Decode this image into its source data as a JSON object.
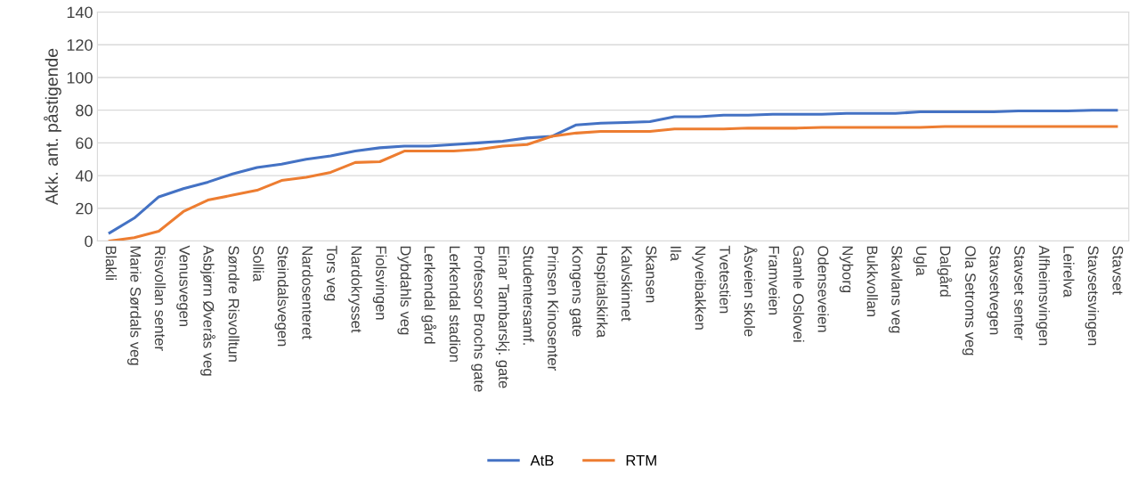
{
  "chart_data": {
    "type": "line",
    "ylabel": "Akk. ant. påstigende",
    "categories": [
      "Blakli",
      "Marie Sørdals veg",
      "Risvollan senter",
      "Venusvegen",
      "Asbjørn Øverås veg",
      "Søndre Risvolltun",
      "Sollia",
      "Steindalsvegen",
      "Nardosenteret",
      "Tors veg",
      "Nardokrysset",
      "Fiolsvingen",
      "Dybdahls veg",
      "Lerkendal gård",
      "Lerkendal stadion",
      "Professor Brochs gate",
      "Einar Tambarskj. gate",
      "Studentersamf.",
      "Prinsen Kinosenter",
      "Kongens gate",
      "Hospitalskirka",
      "Kalvskinnet",
      "Skansen",
      "Ila",
      "Nyveibakken",
      "Tvetestien",
      "Åsveien skole",
      "Framveien",
      "Gamle Oslovei",
      "Odenseveien",
      "Nyborg",
      "Bukkvollan",
      "Skavlans veg",
      "Ugla",
      "Dalgård",
      "Ola Setroms veg",
      "Stavsetvegen",
      "Stavset senter",
      "Alfheimsvingen",
      "Leirelva",
      "Stavsetsvingen",
      "Stavset"
    ],
    "series": [
      {
        "name": "AtB",
        "color": "#4472c4",
        "values": [
          5,
          14,
          27,
          32,
          36,
          41,
          45,
          47,
          50,
          52,
          55,
          57,
          58,
          58,
          59,
          60,
          61,
          63,
          64,
          71,
          72,
          72.5,
          73,
          76,
          76,
          77,
          77,
          77.5,
          77.5,
          77.5,
          78,
          78,
          78,
          79,
          79,
          79,
          79,
          79.5,
          79.5,
          79.5,
          80,
          80
        ]
      },
      {
        "name": "RTM",
        "color": "#ed7d31",
        "values": [
          0,
          2,
          6,
          18,
          25,
          28,
          31,
          37,
          39,
          42,
          48,
          48.5,
          55,
          55,
          55,
          56,
          58,
          59,
          64,
          66,
          67,
          67,
          67,
          68.5,
          68.5,
          68.5,
          69,
          69,
          69,
          69.5,
          69.5,
          69.5,
          69.5,
          69.5,
          70,
          70,
          70,
          70,
          70,
          70,
          70,
          70
        ]
      }
    ],
    "ylim": [
      0,
      140
    ],
    "yticks": [
      0,
      20,
      40,
      60,
      80,
      100,
      120,
      140
    ],
    "grid": "y",
    "legend": "bottom",
    "marker": "none",
    "line_style": "solid"
  }
}
